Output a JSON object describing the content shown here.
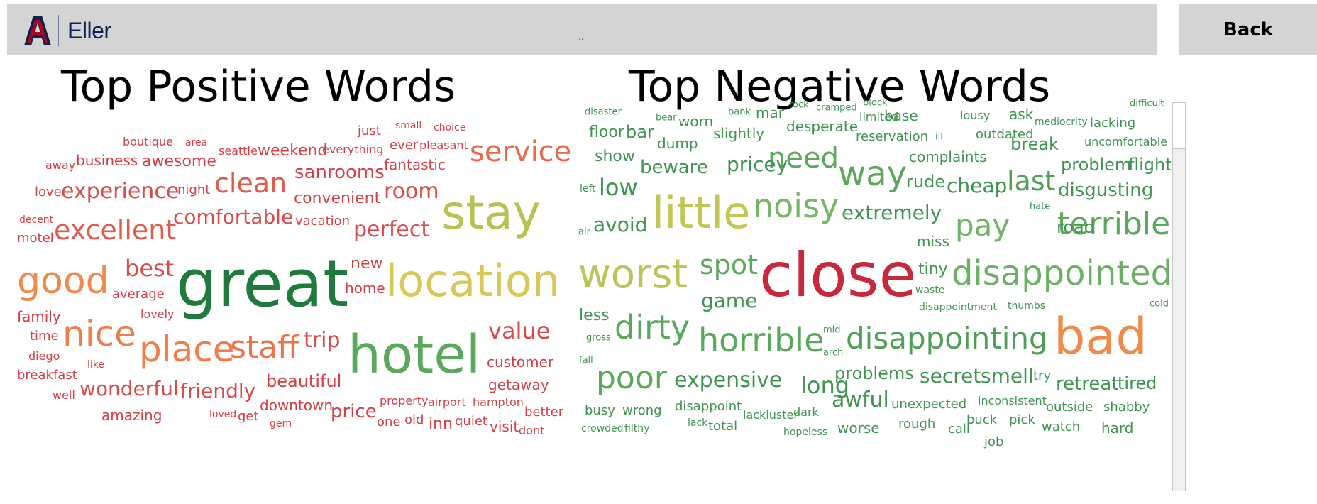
{
  "header": {
    "logo_text": "Eller",
    "dots": "..",
    "back_label": "Back"
  },
  "positive": {
    "title": "Top Positive Words",
    "words": [
      {
        "t": "great",
        "c": "#1f7a3c"
      },
      {
        "t": "hotel",
        "c": "#5aa85a"
      },
      {
        "t": "stay",
        "c": "#b7c24f"
      },
      {
        "t": "location",
        "c": "#d8c85a"
      },
      {
        "t": "good",
        "c": "#f08a4b"
      },
      {
        "t": "nice",
        "c": "#f07d4a"
      },
      {
        "t": "place",
        "c": "#f07d4a"
      },
      {
        "t": "staff",
        "c": "#ec7447"
      },
      {
        "t": "service",
        "c": "#e8684a"
      },
      {
        "t": "clean",
        "c": "#e05b4b"
      },
      {
        "t": "excellent",
        "c": "#e05b4b"
      },
      {
        "t": "experience",
        "c": "#d94a48"
      },
      {
        "t": "comfortable",
        "c": "#d94a48"
      },
      {
        "t": "room",
        "c": "#d94a48"
      },
      {
        "t": "perfect",
        "c": "#d94a48"
      },
      {
        "t": "best",
        "c": "#d94a48"
      },
      {
        "t": "value",
        "c": "#d94a48"
      },
      {
        "t": "trip",
        "c": "#d94a48"
      },
      {
        "t": "wonderful",
        "c": "#d94a48"
      },
      {
        "t": "friendly",
        "c": "#d94a48"
      },
      {
        "t": "beautiful",
        "c": "#d43f45"
      },
      {
        "t": "sanrooms",
        "c": "#d43f45"
      },
      {
        "t": "convenient",
        "c": "#d43f45"
      },
      {
        "t": "awesome",
        "c": "#d43f45"
      },
      {
        "t": "business",
        "c": "#d43f45"
      },
      {
        "t": "weekend",
        "c": "#d43f45"
      },
      {
        "t": "fantastic",
        "c": "#d43f45"
      },
      {
        "t": "price",
        "c": "#d43f45"
      },
      {
        "t": "amazing",
        "c": "#d43f45"
      },
      {
        "t": "new",
        "c": "#d43f45"
      },
      {
        "t": "home",
        "c": "#d43f45"
      },
      {
        "t": "customer",
        "c": "#d43f45"
      },
      {
        "t": "getaway",
        "c": "#d43f45"
      },
      {
        "t": "downtown",
        "c": "#d43f45"
      },
      {
        "t": "vacation",
        "c": "#d43f45"
      },
      {
        "t": "inn",
        "c": "#d43f45"
      },
      {
        "t": "visit",
        "c": "#d43f45"
      },
      {
        "t": "better",
        "c": "#d43f45"
      },
      {
        "t": "quiet",
        "c": "#d43f45"
      },
      {
        "t": "family",
        "c": "#d43f45"
      },
      {
        "t": "average",
        "c": "#d43f45"
      },
      {
        "t": "time",
        "c": "#d43f45"
      },
      {
        "t": "breakfast",
        "c": "#d43f45"
      },
      {
        "t": "ever",
        "c": "#d43f45"
      },
      {
        "t": "just",
        "c": "#d43f45"
      },
      {
        "t": "night",
        "c": "#d43f45"
      },
      {
        "t": "love",
        "c": "#d43f45"
      },
      {
        "t": "motel",
        "c": "#d43f45"
      },
      {
        "t": "get",
        "c": "#d43f45"
      },
      {
        "t": "old",
        "c": "#d43f45"
      },
      {
        "t": "one",
        "c": "#d43f45"
      },
      {
        "t": "lovely",
        "c": "#d43f45"
      },
      {
        "t": "property",
        "c": "#d43f45"
      },
      {
        "t": "airport",
        "c": "#d43f45"
      },
      {
        "t": "hampton",
        "c": "#d43f45"
      },
      {
        "t": "everything",
        "c": "#d43f45"
      },
      {
        "t": "seattle",
        "c": "#d43f45"
      },
      {
        "t": "pleasant",
        "c": "#d43f45"
      },
      {
        "t": "boutique",
        "c": "#d43f45"
      },
      {
        "t": "away",
        "c": "#d43f45"
      },
      {
        "t": "diego",
        "c": "#d43f45"
      },
      {
        "t": "well",
        "c": "#d43f45"
      },
      {
        "t": "like",
        "c": "#d43f45"
      },
      {
        "t": "loved",
        "c": "#d43f45"
      },
      {
        "t": "gem",
        "c": "#d43f45"
      },
      {
        "t": "dont",
        "c": "#d43f45"
      },
      {
        "t": "small",
        "c": "#d43f45"
      },
      {
        "t": "choice",
        "c": "#d43f45"
      },
      {
        "t": "area",
        "c": "#d43f45"
      },
      {
        "t": "decent",
        "c": "#d43f45"
      }
    ]
  },
  "negative": {
    "title": "Top Negative Words",
    "words": [
      {
        "t": "close",
        "c": "#c8283d"
      },
      {
        "t": "bad",
        "c": "#f08a4b"
      },
      {
        "t": "little",
        "c": "#c2c654"
      },
      {
        "t": "worst",
        "c": "#b9c55a"
      },
      {
        "t": "noisy",
        "c": "#76b665"
      },
      {
        "t": "disappointed",
        "c": "#6bb064"
      },
      {
        "t": "terrible",
        "c": "#5aa85a"
      },
      {
        "t": "way",
        "c": "#5aa85a"
      },
      {
        "t": "pay",
        "c": "#6fb363"
      },
      {
        "t": "dirty",
        "c": "#5aa85a"
      },
      {
        "t": "poor",
        "c": "#5aa85a"
      },
      {
        "t": "horrible",
        "c": "#5aa85a"
      },
      {
        "t": "disappointing",
        "c": "#4f9f55"
      },
      {
        "t": "need",
        "c": "#5aa85a"
      },
      {
        "t": "spot",
        "c": "#5aa85a"
      },
      {
        "t": "last",
        "c": "#4f9f55"
      },
      {
        "t": "low",
        "c": "#3f9450"
      },
      {
        "t": "game",
        "c": "#3f9450"
      },
      {
        "t": "expensive",
        "c": "#3f9450"
      },
      {
        "t": "long",
        "c": "#3f9450"
      },
      {
        "t": "awful",
        "c": "#3f9450"
      },
      {
        "t": "extremely",
        "c": "#3f9450"
      },
      {
        "t": "pricey",
        "c": "#3f9450"
      },
      {
        "t": "cheap",
        "c": "#3f9450"
      },
      {
        "t": "avoid",
        "c": "#3f9450"
      },
      {
        "t": "secret",
        "c": "#3f9450"
      },
      {
        "t": "smell",
        "c": "#3f9450"
      },
      {
        "t": "retreat",
        "c": "#3f9450"
      },
      {
        "t": "tired",
        "c": "#3f9450"
      },
      {
        "t": "disgusting",
        "c": "#3f9450"
      },
      {
        "t": "problem",
        "c": "#3f9450"
      },
      {
        "t": "flight",
        "c": "#3f9450"
      },
      {
        "t": "rude",
        "c": "#3f9450"
      },
      {
        "t": "road",
        "c": "#3f9450"
      },
      {
        "t": "problems",
        "c": "#3f9450"
      },
      {
        "t": "beware",
        "c": "#3f9450"
      },
      {
        "t": "bar",
        "c": "#3f9450"
      },
      {
        "t": "break",
        "c": "#3f9450"
      },
      {
        "t": "tiny",
        "c": "#3f9450"
      },
      {
        "t": "show",
        "c": "#3f9450"
      },
      {
        "t": "floor",
        "c": "#3f9450"
      },
      {
        "t": "less",
        "c": "#3f9450"
      },
      {
        "t": "complaints",
        "c": "#3f9450"
      },
      {
        "t": "desperate",
        "c": "#3f9450"
      },
      {
        "t": "slightly",
        "c": "#3f9450"
      },
      {
        "t": "dump",
        "c": "#3f9450"
      },
      {
        "t": "worn",
        "c": "#3f9450"
      },
      {
        "t": "mar",
        "c": "#3f9450"
      },
      {
        "t": "base",
        "c": "#3f9450"
      },
      {
        "t": "ask",
        "c": "#3f9450"
      },
      {
        "t": "reservation",
        "c": "#3f9450"
      },
      {
        "t": "outdated",
        "c": "#3f9450"
      },
      {
        "t": "miss",
        "c": "#3f9450"
      },
      {
        "t": "worse",
        "c": "#3f9450"
      },
      {
        "t": "unexpected",
        "c": "#3f9450"
      },
      {
        "t": "outside",
        "c": "#3f9450"
      },
      {
        "t": "shabby",
        "c": "#3f9450"
      },
      {
        "t": "disappoint",
        "c": "#3f9450"
      },
      {
        "t": "busy",
        "c": "#3f9450"
      },
      {
        "t": "wrong",
        "c": "#3f9450"
      },
      {
        "t": "rough",
        "c": "#3f9450"
      },
      {
        "t": "call",
        "c": "#3f9450"
      },
      {
        "t": "buck",
        "c": "#3f9450"
      },
      {
        "t": "pick",
        "c": "#3f9450"
      },
      {
        "t": "watch",
        "c": "#3f9450"
      },
      {
        "t": "hard",
        "c": "#3f9450"
      },
      {
        "t": "job",
        "c": "#3f9450"
      },
      {
        "t": "try",
        "c": "#3f9450"
      },
      {
        "t": "total",
        "c": "#3f9450"
      },
      {
        "t": "dark",
        "c": "#3f9450"
      },
      {
        "t": "lackluster",
        "c": "#3f9450"
      },
      {
        "t": "inconsistent",
        "c": "#3f9450"
      },
      {
        "t": "lousy",
        "c": "#3f9450"
      },
      {
        "t": "limited",
        "c": "#3f9450"
      },
      {
        "t": "lacking",
        "c": "#3f9450"
      },
      {
        "t": "uncomfortable",
        "c": "#3f9450"
      },
      {
        "t": "mediocrity",
        "c": "#3f9450"
      },
      {
        "t": "disappointment",
        "c": "#3f9450"
      },
      {
        "t": "thumbs",
        "c": "#3f9450"
      },
      {
        "t": "waste",
        "c": "#3f9450"
      },
      {
        "t": "hopeless",
        "c": "#3f9450"
      },
      {
        "t": "crowded",
        "c": "#3f9450"
      },
      {
        "t": "filthy",
        "c": "#3f9450"
      },
      {
        "t": "lack",
        "c": "#3f9450"
      },
      {
        "t": "disaster",
        "c": "#3f9450"
      },
      {
        "t": "bear",
        "c": "#3f9450"
      },
      {
        "t": "bank",
        "c": "#3f9450"
      },
      {
        "t": "left",
        "c": "#3f9450"
      },
      {
        "t": "air",
        "c": "#3f9450"
      },
      {
        "t": "gross",
        "c": "#3f9450"
      },
      {
        "t": "fall",
        "c": "#3f9450"
      },
      {
        "t": "mid",
        "c": "#3f9450"
      },
      {
        "t": "arch",
        "c": "#3f9450"
      },
      {
        "t": "hate",
        "c": "#3f9450"
      },
      {
        "t": "cold",
        "c": "#3f9450"
      },
      {
        "t": "ill",
        "c": "#3f9450"
      },
      {
        "t": "cramped",
        "c": "#3f9450"
      },
      {
        "t": "rock",
        "c": "#3f9450"
      },
      {
        "t": "block",
        "c": "#3f9450"
      },
      {
        "t": "difficult",
        "c": "#3f9450"
      }
    ]
  }
}
